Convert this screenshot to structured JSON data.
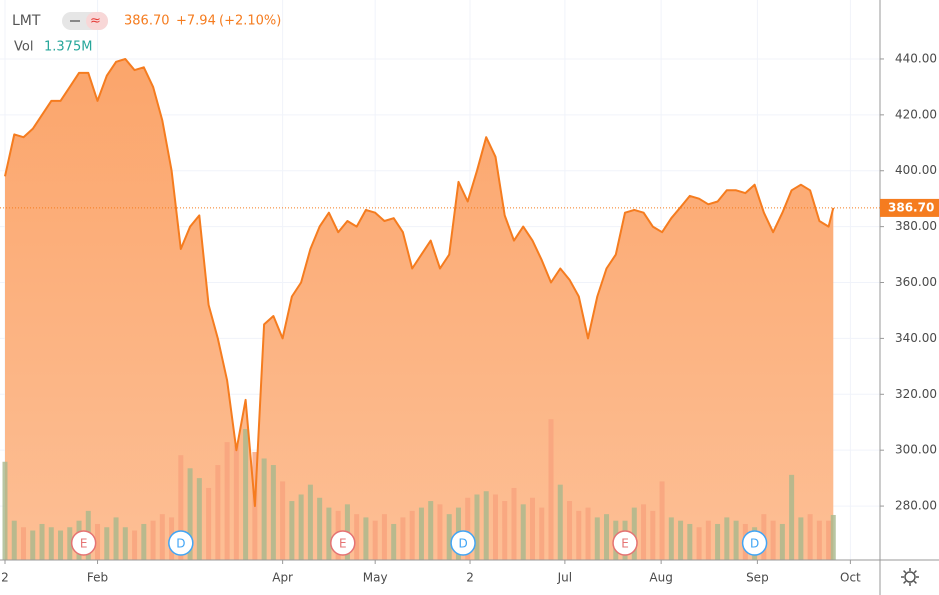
{
  "header": {
    "symbol": "LMT",
    "price": "386.70",
    "change": "+7.94",
    "change_pct": "(+2.10%)",
    "vol_label": "Vol",
    "volume": "1.375M"
  },
  "chart_data": {
    "type": "area",
    "x": [
      0,
      2,
      4,
      6,
      8,
      10,
      12,
      14,
      16,
      18,
      20,
      22,
      24,
      26,
      28,
      30,
      32,
      34,
      36,
      38,
      40,
      42,
      44,
      46,
      48,
      50,
      52,
      54,
      56,
      58,
      60,
      62,
      64,
      66,
      68,
      70,
      72,
      74,
      76,
      78,
      80,
      82,
      84,
      86,
      88,
      90,
      92,
      94,
      96,
      98,
      100,
      102,
      104,
      106,
      108,
      110,
      112,
      114,
      116,
      118,
      120,
      122,
      124,
      126,
      128,
      130,
      132,
      134,
      136,
      138,
      140,
      142,
      144,
      146,
      148,
      150,
      152,
      154,
      156,
      158,
      160,
      162,
      164,
      166,
      168,
      170,
      172,
      174,
      176,
      178,
      179
    ],
    "series": [
      {
        "name": "LMT",
        "color": "#f57c1f",
        "values": [
          398,
          413,
          412,
          415,
          420,
          425,
          425,
          430,
          435,
          435,
          425,
          434,
          439,
          440,
          436,
          437,
          430,
          418,
          400,
          372,
          380,
          384,
          352,
          340,
          325,
          300,
          318,
          280,
          345,
          348,
          340,
          355,
          360,
          372,
          380,
          385,
          378,
          382,
          380,
          386,
          385,
          382,
          383,
          378,
          365,
          370,
          375,
          365,
          370,
          396,
          389,
          400,
          412,
          405,
          384,
          375,
          380,
          375,
          368,
          360,
          365,
          361,
          355,
          340,
          355,
          365,
          370,
          385,
          386,
          385,
          380,
          378,
          383,
          387,
          391,
          390,
          388,
          389,
          393,
          393,
          392,
          395,
          385,
          378,
          385,
          393,
          395,
          393,
          382,
          380,
          386.7
        ],
        "value_labels": {
          "90": "386.70"
        }
      },
      {
        "name": "Vol",
        "axis": "y2",
        "color": "#f7a27d",
        "values": [
          3.0,
          1.2,
          1.0,
          0.9,
          1.1,
          1.0,
          0.9,
          1.0,
          1.2,
          1.5,
          1.1,
          1.0,
          1.3,
          1.0,
          0.9,
          1.1,
          1.2,
          1.4,
          1.3,
          3.2,
          2.8,
          2.5,
          2.2,
          2.9,
          3.6,
          3.5,
          4.0,
          3.3,
          3.1,
          2.9,
          2.4,
          1.8,
          2.0,
          2.3,
          1.9,
          1.6,
          1.5,
          1.7,
          1.4,
          1.3,
          1.2,
          1.4,
          1.1,
          1.3,
          1.5,
          1.6,
          1.8,
          1.7,
          1.4,
          1.6,
          1.9,
          2.0,
          2.1,
          2.0,
          1.8,
          2.2,
          1.7,
          1.9,
          1.6,
          4.3,
          2.3,
          1.8,
          1.5,
          1.6,
          1.3,
          1.4,
          1.2,
          1.2,
          1.6,
          1.7,
          1.5,
          2.4,
          1.3,
          1.2,
          1.1,
          1.0,
          1.2,
          1.1,
          1.3,
          1.2,
          1.1,
          1.0,
          1.4,
          1.2,
          1.1,
          2.6,
          1.3,
          1.4,
          1.2,
          1.2,
          1.375
        ]
      }
    ],
    "xlim": [
      -1.08,
      189.1
    ],
    "xticks": [
      {
        "value": 0,
        "label": "2"
      },
      {
        "value": 20,
        "label": "Feb"
      },
      {
        "value": 60,
        "label": "Apr"
      },
      {
        "value": 80,
        "label": "May"
      },
      {
        "value": 100.5,
        "label": "2"
      },
      {
        "value": 121,
        "label": "Jul"
      },
      {
        "value": 141.8,
        "label": "Aug"
      },
      {
        "value": 162.6,
        "label": "Sep"
      },
      {
        "value": 182.7,
        "label": "Oct"
      }
    ],
    "ylim": [
      260.7,
      461.1
    ],
    "yticks": [
      {
        "value": 280,
        "label": "280.00"
      },
      {
        "value": 300,
        "label": "300.00"
      },
      {
        "value": 320,
        "label": "320.00"
      },
      {
        "value": 340,
        "label": "340.00"
      },
      {
        "value": 360,
        "label": "360.00"
      },
      {
        "value": 380,
        "label": "380.00"
      },
      {
        "value": 400,
        "label": "400.00"
      },
      {
        "value": 420,
        "label": "420.00"
      },
      {
        "value": 440,
        "label": "440.00"
      }
    ],
    "y2lim": [
      0,
      17.1
    ],
    "events": [
      {
        "x": 17,
        "label": "E"
      },
      {
        "x": 38,
        "label": "D"
      },
      {
        "x": 73,
        "label": "E"
      },
      {
        "x": 99,
        "label": "D"
      },
      {
        "x": 134,
        "label": "E"
      },
      {
        "x": 162,
        "label": "D"
      }
    ]
  }
}
